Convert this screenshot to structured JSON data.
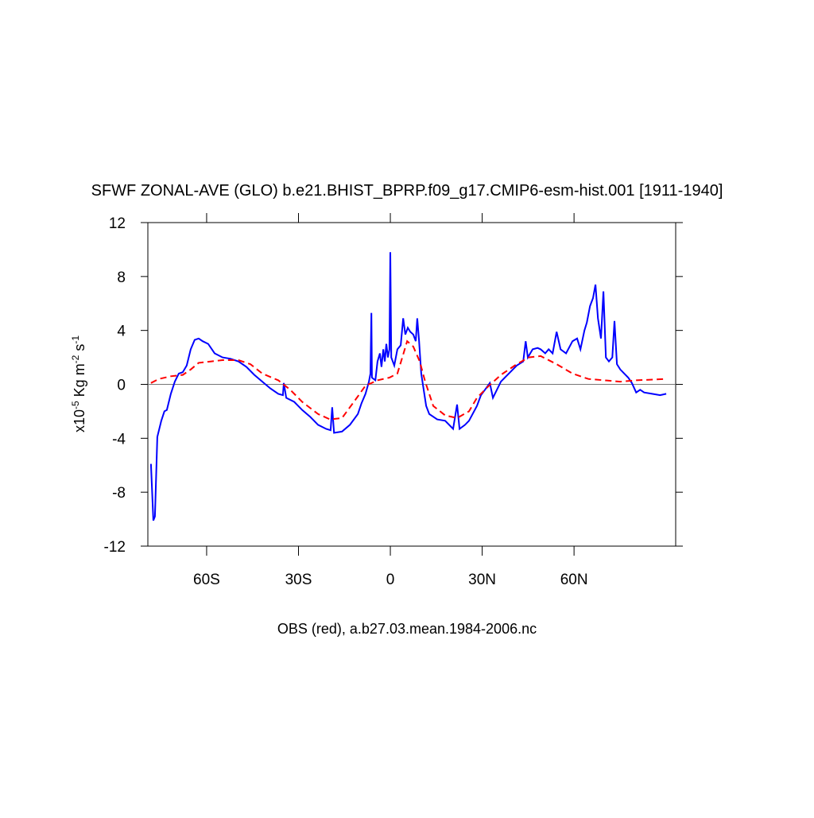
{
  "chart_data": {
    "type": "line",
    "title": "SFWF ZONAL-AVE (GLO) b.e21.BHIST_BPRP.f09_g17.CMIP6-esm-hist.001 [1911-1940]",
    "xlabel": "OBS (red), a.b27.03.mean.1984-2006.nc",
    "ylabel": [
      "x10",
      "-5",
      " Kg m",
      "-2",
      " s",
      "-1"
    ],
    "xlim": [
      -79.2,
      93.2
    ],
    "ylim": [
      -12,
      12
    ],
    "xticks": [
      {
        "value": -60,
        "label": "60S"
      },
      {
        "value": -30,
        "label": "30S"
      },
      0,
      {
        "value": 30,
        "label": "30N"
      },
      {
        "value": 60,
        "label": "60N"
      }
    ],
    "yticks": [
      -12,
      -8,
      -4,
      0,
      4,
      8,
      12
    ],
    "reference_line": 0,
    "series": [
      {
        "color": "#0000ff",
        "dash": false,
        "x": [
          -78.2,
          -77.4,
          -76.9,
          -76.1,
          -74.8,
          -73.8,
          -73.0,
          -71.7,
          -70.4,
          -69.1,
          -67.8,
          -66.5,
          -65.2,
          -63.9,
          -62.6,
          -61.3,
          -59.5,
          -57.4,
          -54.8,
          -52.2,
          -49.6,
          -47.0,
          -44.4,
          -41.8,
          -39.2,
          -36.6,
          -35.1,
          -34.8,
          -34.0,
          -31.4,
          -28.8,
          -26.2,
          -23.6,
          -21.0,
          -19.5,
          -19.0,
          -18.4,
          -15.8,
          -13.2,
          -10.6,
          -9.4,
          -8.1,
          -7.0,
          -6.5,
          -6.2,
          -6.0,
          -4.9,
          -4.2,
          -3.4,
          -2.9,
          -2.3,
          -1.8,
          -1.3,
          -0.8,
          -0.3,
          0,
          0.3,
          1.3,
          2.3,
          3.4,
          4.2,
          4.9,
          5.7,
          6.5,
          7.5,
          8.3,
          8.8,
          9.4,
          10.1,
          10.9,
          11.7,
          12.7,
          15.3,
          17.9,
          20.5,
          21.8,
          22.6,
          24.4,
          25.7,
          28.3,
          29.6,
          30.9,
          32.5,
          33.5,
          34.8,
          36.1,
          38.7,
          41.3,
          43.4,
          44.2,
          44.9,
          46.5,
          48.1,
          49.1,
          50.6,
          51.7,
          53.0,
          54.3,
          55.6,
          57.4,
          59.5,
          61.0,
          62.1,
          63.4,
          64.2,
          65.2,
          66.2,
          67.0,
          67.8,
          68.8,
          69.6,
          70.4,
          71.4,
          72.5,
          73.2,
          74.0,
          75.1,
          77.7,
          78.9,
          80.3,
          81.6,
          82.9,
          85.5,
          88.1,
          90.1
        ],
        "values": [
          -5.9,
          -10.1,
          -9.8,
          -3.9,
          -2.7,
          -2.0,
          -1.9,
          -0.7,
          0.2,
          0.8,
          0.9,
          1.4,
          2.6,
          3.3,
          3.4,
          3.2,
          3.0,
          2.3,
          2.0,
          1.9,
          1.7,
          1.3,
          0.7,
          0.2,
          -0.3,
          -0.7,
          -0.8,
          0.1,
          -1.0,
          -1.3,
          -1.9,
          -2.4,
          -3.0,
          -3.3,
          -3.4,
          -1.7,
          -3.6,
          -3.5,
          -3.0,
          -2.2,
          -1.4,
          -0.7,
          0.2,
          0.8,
          5.3,
          0.5,
          0.3,
          1.7,
          2.3,
          1.3,
          2.6,
          1.7,
          3.0,
          2.0,
          2.6,
          9.8,
          2.0,
          1.4,
          2.6,
          2.9,
          4.9,
          3.7,
          4.2,
          3.9,
          3.7,
          3.2,
          4.9,
          3.2,
          0.8,
          -0.4,
          -1.6,
          -2.2,
          -2.6,
          -2.7,
          -3.3,
          -1.5,
          -3.3,
          -3.0,
          -2.7,
          -1.6,
          -0.8,
          -0.4,
          0.1,
          -1.0,
          -0.4,
          0.2,
          0.8,
          1.4,
          1.7,
          3.2,
          2.0,
          2.6,
          2.7,
          2.6,
          2.3,
          2.6,
          2.3,
          3.9,
          2.6,
          2.3,
          3.2,
          3.4,
          2.6,
          4.0,
          4.6,
          5.8,
          6.4,
          7.4,
          4.9,
          3.4,
          6.9,
          2.0,
          1.7,
          2.0,
          4.7,
          1.5,
          1.1,
          0.5,
          0.1,
          -0.6,
          -0.4,
          -0.6,
          -0.7,
          -0.8,
          -0.7
        ]
      },
      {
        "color": "#ff0000",
        "dash": true,
        "x": [
          -78.2,
          -75.6,
          -71.7,
          -67.8,
          -65.2,
          -62.6,
          -58.7,
          -54.8,
          -49.6,
          -45.7,
          -41.8,
          -36.6,
          -32.7,
          -28.8,
          -23.6,
          -19.7,
          -15.8,
          -11.9,
          -8.1,
          -4.2,
          -0.3,
          2.3,
          3.9,
          5.5,
          7.5,
          9.6,
          11.4,
          14.0,
          17.9,
          21.8,
          25.7,
          28.3,
          32.2,
          36.1,
          41.3,
          45.2,
          49.1,
          54.3,
          59.5,
          64.7,
          69.9,
          75.1,
          80.3,
          90.1
        ],
        "values": [
          0.1,
          0.4,
          0.6,
          0.7,
          1.1,
          1.6,
          1.7,
          1.8,
          1.8,
          1.5,
          0.8,
          0.3,
          -0.4,
          -1.3,
          -2.2,
          -2.6,
          -2.5,
          -1.3,
          -0.1,
          0.3,
          0.5,
          0.8,
          2.0,
          3.2,
          2.8,
          1.7,
          0.2,
          -1.6,
          -2.3,
          -2.5,
          -2.0,
          -1.0,
          -0.1,
          0.7,
          1.5,
          2.0,
          2.1,
          1.5,
          0.8,
          0.4,
          0.3,
          0.2,
          0.3,
          0.4
        ]
      }
    ]
  }
}
